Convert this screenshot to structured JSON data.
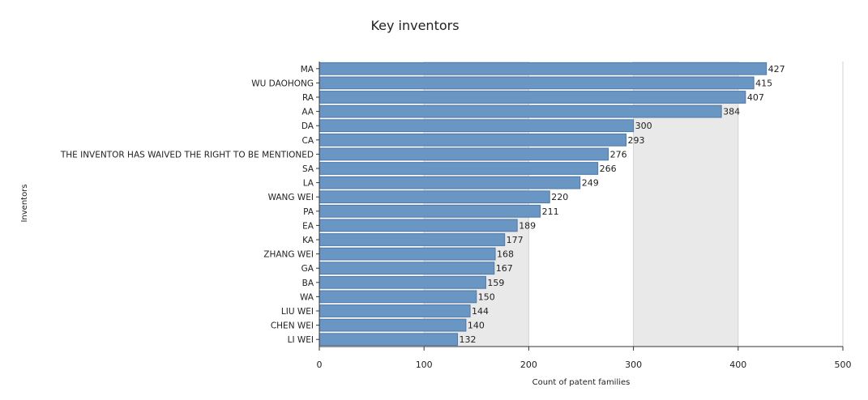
{
  "chart_data": {
    "type": "bar",
    "orientation": "horizontal",
    "title": "Key inventors",
    "xlabel": "Count of patent families",
    "ylabel": "Inventors",
    "xlim": [
      0,
      500
    ],
    "x_ticks": [
      0,
      100,
      200,
      300,
      400,
      500
    ],
    "categories": [
      "MA",
      "WU DAOHONG",
      "RA",
      "AA",
      "DA",
      "CA",
      "THE INVENTOR HAS WAIVED THE RIGHT TO BE MENTIONED",
      "SA",
      "LA",
      "WANG WEI",
      "PA",
      "EA",
      "KA",
      "ZHANG WEI",
      "GA",
      "BA",
      "WA",
      "LIU WEI",
      "CHEN WEI",
      "LI WEI"
    ],
    "values": [
      427,
      415,
      407,
      384,
      300,
      293,
      276,
      266,
      249,
      220,
      211,
      189,
      177,
      168,
      167,
      159,
      150,
      144,
      140,
      132
    ],
    "data_labels": true,
    "legend": "none",
    "grid": "alternating vertical bands",
    "colors": {
      "bar_fill": "#6a96c4",
      "bar_stroke": "#4d79a8",
      "band_fill": "#e9e9e9",
      "grid_line": "#d2d2d2",
      "axis_line": "#333333",
      "text": "#222222"
    }
  }
}
